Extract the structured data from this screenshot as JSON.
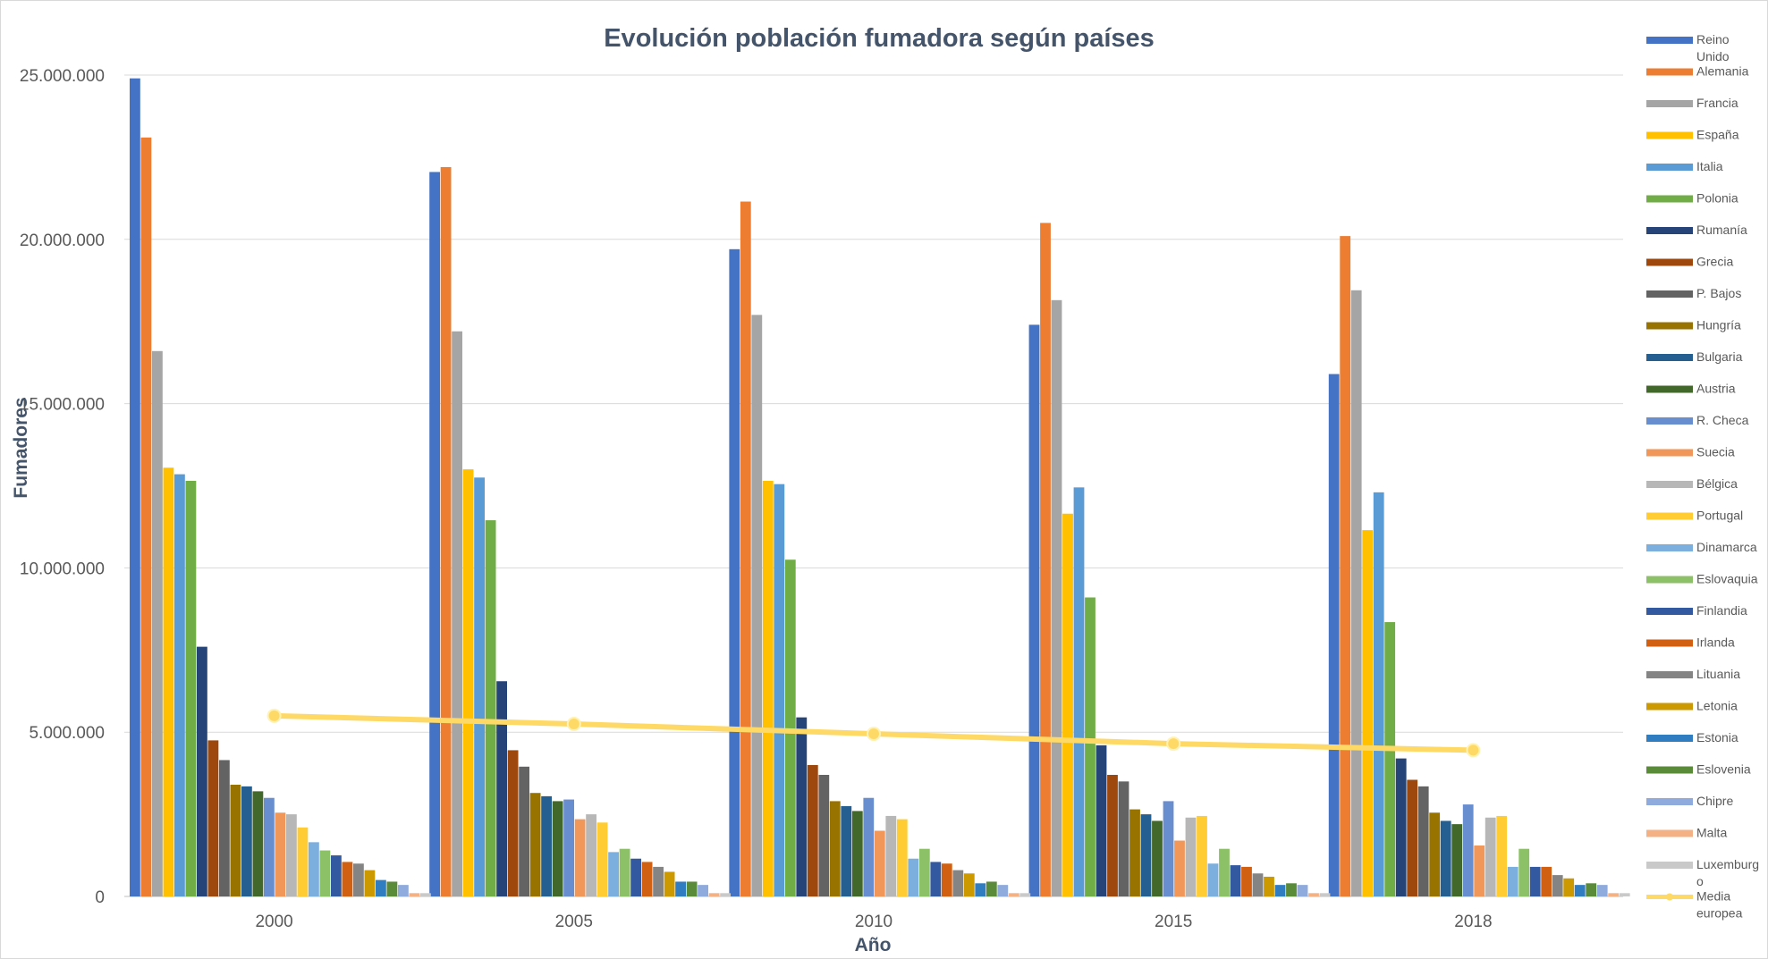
{
  "chart_data": {
    "type": "bar",
    "title": "Evolución población fumadora según países",
    "xlabel": "Año",
    "ylabel": "Fumadores",
    "ylim": [
      0,
      25000000
    ],
    "yticks": [
      0,
      5000000,
      10000000,
      15000000,
      20000000,
      25000000
    ],
    "ytick_labels": [
      "0",
      "5.000.000",
      "10.000.000",
      "15.000.000",
      "20.000.000",
      "25.000.000"
    ],
    "categories": [
      "2000",
      "2005",
      "2010",
      "2015",
      "2018"
    ],
    "grid": true,
    "legend_position": "right",
    "series": [
      {
        "name": "Reino Unido",
        "color": "#4472c4",
        "values": [
          24900000,
          22050000,
          19700000,
          17400000,
          15900000
        ]
      },
      {
        "name": "Alemania",
        "color": "#ed7d31",
        "values": [
          23100000,
          22200000,
          21150000,
          20500000,
          20100000
        ]
      },
      {
        "name": "Francia",
        "color": "#a5a5a5",
        "values": [
          16600000,
          17200000,
          17700000,
          18150000,
          18450000
        ]
      },
      {
        "name": "España",
        "color": "#ffc000",
        "values": [
          13050000,
          13000000,
          12650000,
          11650000,
          11150000
        ]
      },
      {
        "name": "Italia",
        "color": "#5b9bd5",
        "values": [
          12850000,
          12750000,
          12550000,
          12450000,
          12300000
        ]
      },
      {
        "name": "Polonia",
        "color": "#70ad47",
        "values": [
          12650000,
          11450000,
          10250000,
          9100000,
          8350000
        ]
      },
      {
        "name": "Rumanía",
        "color": "#264478",
        "values": [
          7600000,
          6550000,
          5450000,
          4600000,
          4200000
        ]
      },
      {
        "name": "Grecia",
        "color": "#9e480e",
        "values": [
          4750000,
          4450000,
          4000000,
          3700000,
          3550000
        ]
      },
      {
        "name": "P. Bajos",
        "color": "#636363",
        "values": [
          4150000,
          3950000,
          3700000,
          3500000,
          3350000
        ]
      },
      {
        "name": "Hungría",
        "color": "#997300",
        "values": [
          3400000,
          3150000,
          2900000,
          2650000,
          2550000
        ]
      },
      {
        "name": "Bulgaria",
        "color": "#255e91",
        "values": [
          3350000,
          3050000,
          2750000,
          2500000,
          2300000
        ]
      },
      {
        "name": "Austria",
        "color": "#43682b",
        "values": [
          3200000,
          2900000,
          2600000,
          2300000,
          2200000
        ]
      },
      {
        "name": "R. Checa",
        "color": "#698ed0",
        "values": [
          3000000,
          2950000,
          3000000,
          2900000,
          2800000
        ]
      },
      {
        "name": "Suecia",
        "color": "#f1975a",
        "values": [
          2550000,
          2350000,
          2000000,
          1700000,
          1550000
        ]
      },
      {
        "name": "Bélgica",
        "color": "#b7b7b7",
        "values": [
          2500000,
          2500000,
          2450000,
          2400000,
          2400000
        ]
      },
      {
        "name": "Portugal",
        "color": "#ffcd33",
        "values": [
          2100000,
          2250000,
          2350000,
          2450000,
          2450000
        ]
      },
      {
        "name": "Dinamarca",
        "color": "#7cafdd",
        "values": [
          1650000,
          1350000,
          1150000,
          1000000,
          900000
        ]
      },
      {
        "name": "Eslovaquia",
        "color": "#8cc168",
        "values": [
          1400000,
          1450000,
          1450000,
          1450000,
          1450000
        ]
      },
      {
        "name": "Finlandia",
        "color": "#335aa1",
        "values": [
          1250000,
          1150000,
          1050000,
          950000,
          900000
        ]
      },
      {
        "name": "Irlanda",
        "color": "#d26012",
        "values": [
          1050000,
          1050000,
          1000000,
          900000,
          900000
        ]
      },
      {
        "name": "Lituania",
        "color": "#848484",
        "values": [
          1000000,
          900000,
          800000,
          700000,
          650000
        ]
      },
      {
        "name": "Letonia",
        "color": "#cc9a00",
        "values": [
          800000,
          750000,
          700000,
          600000,
          550000
        ]
      },
      {
        "name": "Estonia",
        "color": "#317dc2",
        "values": [
          500000,
          450000,
          400000,
          350000,
          350000
        ]
      },
      {
        "name": "Eslovenia",
        "color": "#5a8b39",
        "values": [
          450000,
          450000,
          450000,
          400000,
          400000
        ]
      },
      {
        "name": "Chipre",
        "color": "#8faadc",
        "values": [
          350000,
          350000,
          350000,
          350000,
          350000
        ]
      },
      {
        "name": "Malta",
        "color": "#f4b183",
        "values": [
          100000,
          100000,
          100000,
          100000,
          100000
        ]
      },
      {
        "name": "Luxemburgo",
        "color": "#c9c9c9",
        "values": [
          100000,
          100000,
          100000,
          100000,
          100000
        ]
      }
    ],
    "line_series": {
      "name": "Media europea",
      "color": "#ffd966",
      "values": [
        5500000,
        5250000,
        4950000,
        4650000,
        4450000
      ]
    }
  },
  "legend_lines": {
    "Reino Unido": [
      "Reino",
      "Unido"
    ],
    "Luxemburgo": [
      "Luxemburg",
      "o"
    ],
    "Media europea": [
      "Media",
      "europea"
    ]
  }
}
